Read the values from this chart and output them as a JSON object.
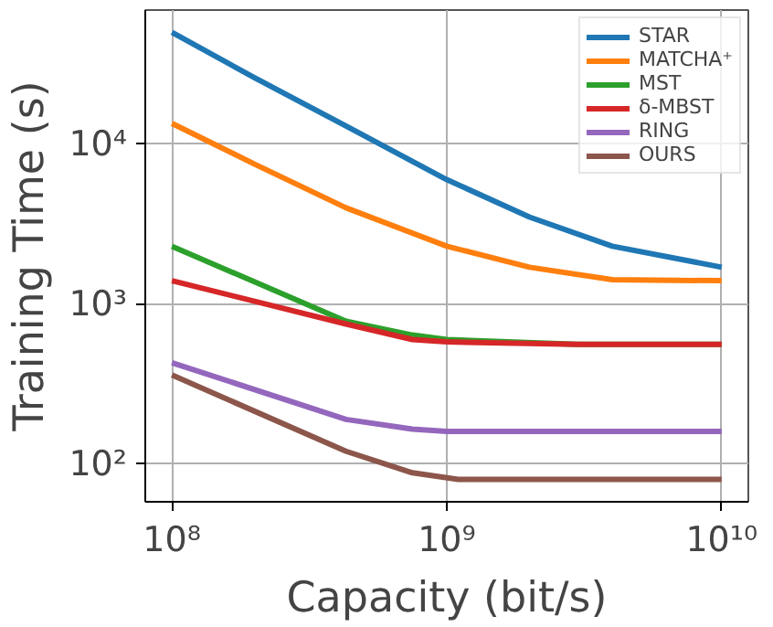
{
  "chart_data": {
    "type": "line",
    "xlabel": "Capacity (bit/s)",
    "ylabel": "Training Time (s)",
    "log": "xy",
    "grid": true,
    "legend": "top right",
    "line_style": "solid",
    "marker": "none",
    "xlim": [
      80000000,
      12500000000
    ],
    "ylim": [
      58,
      69000
    ],
    "xticks": [
      {
        "value": 100000000,
        "label": "10⁸"
      },
      {
        "value": 1000000000,
        "label": "10⁹"
      },
      {
        "value": 10000000000,
        "label": "10¹⁰"
      }
    ],
    "yticks": [
      {
        "value": 100,
        "label": "10²"
      },
      {
        "value": 1000,
        "label": "10³"
      },
      {
        "value": 10000,
        "label": "10⁴"
      }
    ],
    "series": [
      {
        "name": "STAR",
        "color": "#1f77b4",
        "x": [
          100000000,
          200000000,
          430000000,
          1000000000,
          2000000000,
          4000000000,
          10000000000
        ],
        "values": [
          50000,
          26000,
          13000,
          6000,
          3500,
          2300,
          1700
        ]
      },
      {
        "name": "MATCHA⁺",
        "color": "#ff7f0e",
        "x": [
          100000000,
          200000000,
          430000000,
          1000000000,
          2000000000,
          4000000000,
          10000000000
        ],
        "values": [
          13500,
          7500,
          4000,
          2300,
          1700,
          1420,
          1400
        ]
      },
      {
        "name": "MST",
        "color": "#2ca02c",
        "x": [
          100000000,
          430000000,
          750000000,
          1000000000,
          3000000000,
          10000000000
        ],
        "values": [
          2300,
          780,
          640,
          600,
          560,
          560
        ]
      },
      {
        "name": "δ-MBST",
        "color": "#d62728",
        "x": [
          100000000,
          430000000,
          750000000,
          1000000000,
          3000000000,
          10000000000
        ],
        "values": [
          1400,
          750,
          600,
          580,
          560,
          560
        ]
      },
      {
        "name": "RING",
        "color": "#9467bd",
        "x": [
          100000000,
          430000000,
          750000000,
          1000000000,
          10000000000
        ],
        "values": [
          430,
          190,
          165,
          160,
          160
        ]
      },
      {
        "name": "OURS",
        "color": "#8c564b",
        "x": [
          100000000,
          430000000,
          750000000,
          1100000000,
          10000000000
        ],
        "values": [
          360,
          120,
          88,
          80,
          80
        ]
      }
    ]
  }
}
